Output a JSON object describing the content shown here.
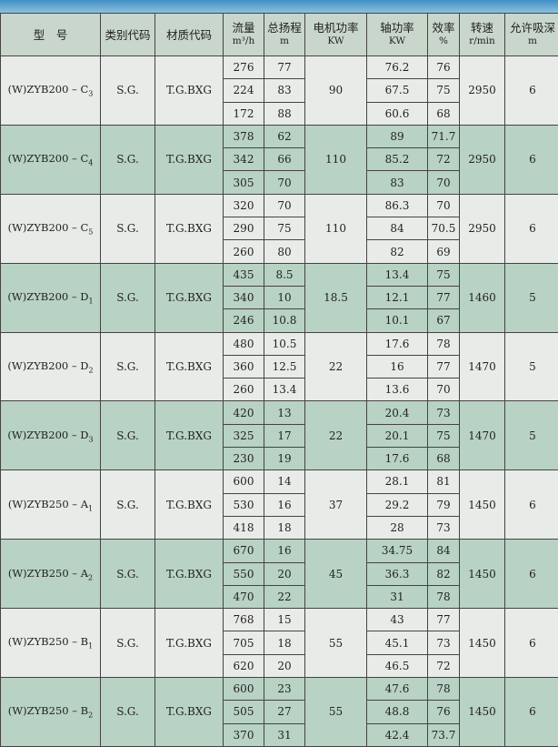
{
  "headers": [
    {
      "label": "型　号",
      "unit": ""
    },
    {
      "label": "类别代码",
      "unit": ""
    },
    {
      "label": "材质代码",
      "unit": ""
    },
    {
      "label": "流量",
      "unit": "m³/h"
    },
    {
      "label": "总扬程",
      "unit": "m"
    },
    {
      "label": "电机功率",
      "unit": "KW"
    },
    {
      "label": "轴功率",
      "unit": "KW"
    },
    {
      "label": "效率",
      "unit": "%"
    },
    {
      "label": "转速",
      "unit": "r/min"
    },
    {
      "label": "允许吸深",
      "unit": "m"
    }
  ],
  "groups": [
    {
      "model": "(W)ZYB200 – C",
      "sub": "3",
      "category": "S.G.",
      "material": "T.G.BXG",
      "motor_kw": "90",
      "speed": "2950",
      "npsh": "6",
      "rows": [
        {
          "flow": "276",
          "head": "77",
          "shaft": "76.2",
          "eff": "76"
        },
        {
          "flow": "224",
          "head": "83",
          "shaft": "67.5",
          "eff": "75"
        },
        {
          "flow": "172",
          "head": "88",
          "shaft": "60.6",
          "eff": "68"
        }
      ]
    },
    {
      "model": "(W)ZYB200 – C",
      "sub": "4",
      "category": "S.G.",
      "material": "T.G.BXG",
      "motor_kw": "110",
      "speed": "2950",
      "npsh": "6",
      "rows": [
        {
          "flow": "378",
          "head": "62",
          "shaft": "89",
          "eff": "71.7"
        },
        {
          "flow": "342",
          "head": "66",
          "shaft": "85.2",
          "eff": "72"
        },
        {
          "flow": "305",
          "head": "70",
          "shaft": "83",
          "eff": "70"
        }
      ]
    },
    {
      "model": "(W)ZYB200 – C",
      "sub": "5",
      "category": "S.G.",
      "material": "T.G.BXG",
      "motor_kw": "110",
      "speed": "2950",
      "npsh": "6",
      "rows": [
        {
          "flow": "320",
          "head": "70",
          "shaft": "86.3",
          "eff": "70"
        },
        {
          "flow": "290",
          "head": "75",
          "shaft": "84",
          "eff": "70.5"
        },
        {
          "flow": "260",
          "head": "80",
          "shaft": "82",
          "eff": "69"
        }
      ]
    },
    {
      "model": "(W)ZYB200 – D",
      "sub": "1",
      "category": "S.G.",
      "material": "T.G.BXG",
      "motor_kw": "18.5",
      "speed": "1460",
      "npsh": "5",
      "rows": [
        {
          "flow": "435",
          "head": "8.5",
          "shaft": "13.4",
          "eff": "75"
        },
        {
          "flow": "340",
          "head": "10",
          "shaft": "12.1",
          "eff": "77"
        },
        {
          "flow": "246",
          "head": "10.8",
          "shaft": "10.1",
          "eff": "67"
        }
      ]
    },
    {
      "model": "(W)ZYB200 – D",
      "sub": "2",
      "category": "S.G.",
      "material": "T.G.BXG",
      "motor_kw": "22",
      "speed": "1470",
      "npsh": "5",
      "rows": [
        {
          "flow": "480",
          "head": "10.5",
          "shaft": "17.6",
          "eff": "78"
        },
        {
          "flow": "360",
          "head": "12.5",
          "shaft": "16",
          "eff": "77"
        },
        {
          "flow": "260",
          "head": "13.4",
          "shaft": "13.6",
          "eff": "70"
        }
      ]
    },
    {
      "model": "(W)ZYB200 – D",
      "sub": "3",
      "category": "S.G.",
      "material": "T.G.BXG",
      "motor_kw": "22",
      "speed": "1470",
      "npsh": "5",
      "rows": [
        {
          "flow": "420",
          "head": "13",
          "shaft": "20.4",
          "eff": "73"
        },
        {
          "flow": "325",
          "head": "17",
          "shaft": "20.1",
          "eff": "75"
        },
        {
          "flow": "230",
          "head": "19",
          "shaft": "17.6",
          "eff": "68"
        }
      ]
    },
    {
      "model": "(W)ZYB250 – A",
      "sub": "1",
      "category": "S.G.",
      "material": "T.G.BXG",
      "motor_kw": "37",
      "speed": "1450",
      "npsh": "6",
      "rows": [
        {
          "flow": "600",
          "head": "14",
          "shaft": "28.1",
          "eff": "81"
        },
        {
          "flow": "530",
          "head": "16",
          "shaft": "29.2",
          "eff": "79"
        },
        {
          "flow": "418",
          "head": "18",
          "shaft": "28",
          "eff": "73"
        }
      ]
    },
    {
      "model": "(W)ZYB250 – A",
      "sub": "2",
      "category": "S.G.",
      "material": "T.G.BXG",
      "motor_kw": "45",
      "speed": "1450",
      "npsh": "6",
      "rows": [
        {
          "flow": "670",
          "head": "16",
          "shaft": "34.75",
          "eff": "84"
        },
        {
          "flow": "550",
          "head": "20",
          "shaft": "36.3",
          "eff": "82"
        },
        {
          "flow": "470",
          "head": "22",
          "shaft": "31",
          "eff": "78"
        }
      ]
    },
    {
      "model": "(W)ZYB250 – B",
      "sub": "1",
      "category": "S.G.",
      "material": "T.G.BXG",
      "motor_kw": "55",
      "speed": "1450",
      "npsh": "6",
      "rows": [
        {
          "flow": "768",
          "head": "15",
          "shaft": "43",
          "eff": "77"
        },
        {
          "flow": "705",
          "head": "18",
          "shaft": "45.1",
          "eff": "73"
        },
        {
          "flow": "620",
          "head": "20",
          "shaft": "46.5",
          "eff": "72"
        }
      ]
    },
    {
      "model": "(W)ZYB250 – B",
      "sub": "2",
      "category": "S.G.",
      "material": "T.G.BXG",
      "motor_kw": "55",
      "speed": "1450",
      "npsh": "6",
      "rows": [
        {
          "flow": "600",
          "head": "23",
          "shaft": "47.6",
          "eff": "78"
        },
        {
          "flow": "505",
          "head": "27",
          "shaft": "48.8",
          "eff": "76"
        },
        {
          "flow": "370",
          "head": "31",
          "shaft": "42.4",
          "eff": "73.7"
        }
      ]
    }
  ]
}
